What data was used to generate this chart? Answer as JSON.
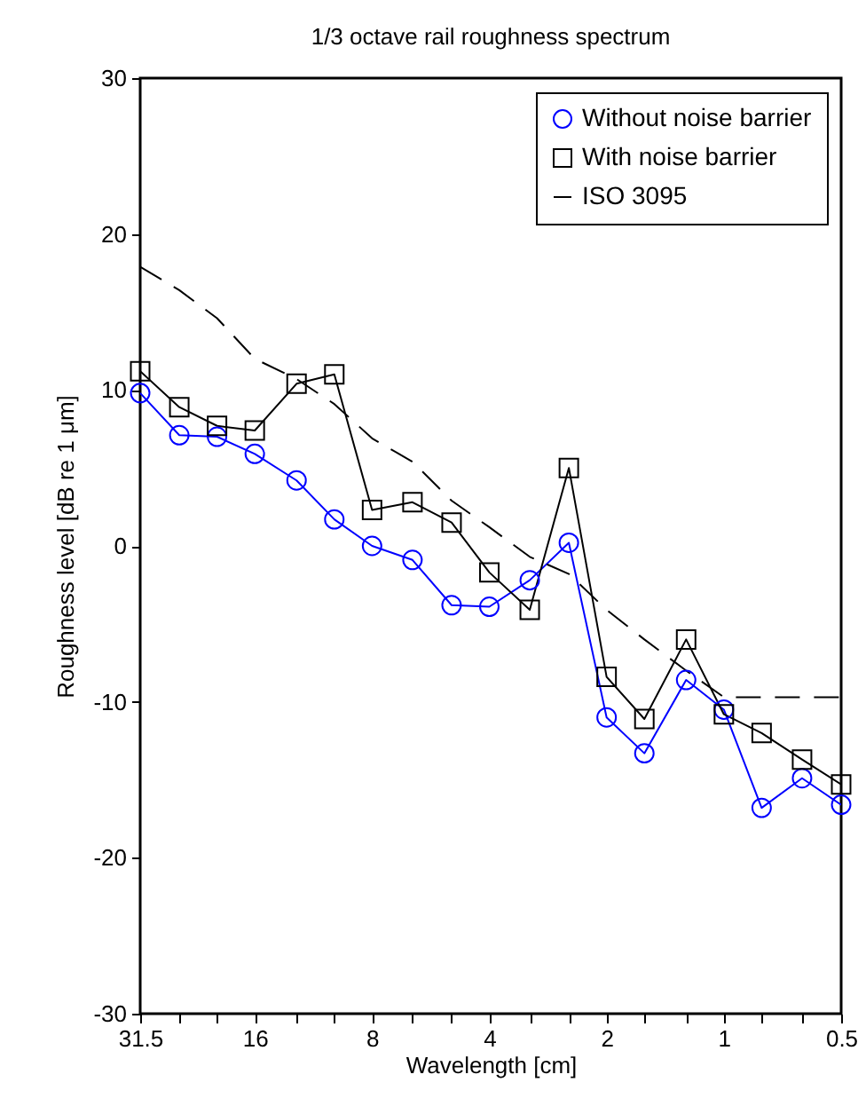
{
  "chart_data": {
    "type": "line",
    "title": "1/3 octave rail roughness spectrum",
    "xlabel": "Wavelength [cm]",
    "ylabel": "Roughness level [dB re 1 μm]",
    "x": [
      31.5,
      25,
      20,
      16,
      12.5,
      10,
      8,
      6.3,
      5,
      4,
      3.15,
      2.5,
      2,
      1.6,
      1.25,
      1,
      0.8,
      0.63,
      0.5
    ],
    "series": [
      {
        "name": "Without noise barrier",
        "color": "#0000ff",
        "marker": "circle",
        "line_style": "solid",
        "values": [
          9.8,
          7.1,
          7.0,
          5.9,
          4.2,
          1.7,
          0.0,
          -0.9,
          -3.8,
          -3.9,
          -2.2,
          0.2,
          -11.0,
          -13.3,
          -8.6,
          -10.5,
          -16.8,
          -14.9,
          -16.6
        ]
      },
      {
        "name": "With noise barrier",
        "color": "#000000",
        "marker": "square",
        "line_style": "solid",
        "values": [
          11.2,
          8.9,
          7.7,
          7.4,
          10.4,
          11.0,
          2.3,
          2.8,
          1.5,
          -1.7,
          -4.1,
          5.0,
          -8.4,
          -11.1,
          -6.0,
          -10.8,
          -12.0,
          -13.7,
          -15.3
        ]
      },
      {
        "name": "ISO 3095",
        "color": "#000000",
        "marker": "none",
        "line_style": "dashed",
        "values": [
          17.9,
          16.4,
          14.6,
          12.0,
          10.7,
          9.1,
          6.9,
          5.4,
          2.9,
          1.2,
          -0.7,
          -1.8,
          -4.1,
          -6.0,
          -8.0,
          -9.7,
          -9.7,
          -9.7,
          -9.7
        ]
      }
    ],
    "log": "x",
    "xlim": [
      31.5,
      0.5
    ],
    "xticks": [
      31.5,
      {
        "value": 25,
        "label": null
      },
      {
        "value": 20,
        "label": null
      },
      16,
      {
        "value": 12.5,
        "label": null
      },
      {
        "value": 10,
        "label": null
      },
      8,
      {
        "value": 6.3,
        "label": null
      },
      {
        "value": 5,
        "label": null
      },
      4,
      {
        "value": 3.15,
        "label": null
      },
      {
        "value": 2.5,
        "label": null
      },
      2,
      {
        "value": 1.6,
        "label": null
      },
      {
        "value": 1.25,
        "label": null
      },
      1,
      {
        "value": 0.8,
        "label": null
      },
      {
        "value": 0.63,
        "label": null
      },
      0.5
    ],
    "ylim": [
      -30,
      30
    ],
    "yticks": [
      -30,
      -20,
      -10,
      0,
      10,
      20,
      30
    ],
    "grid": false,
    "legend": "top right"
  }
}
